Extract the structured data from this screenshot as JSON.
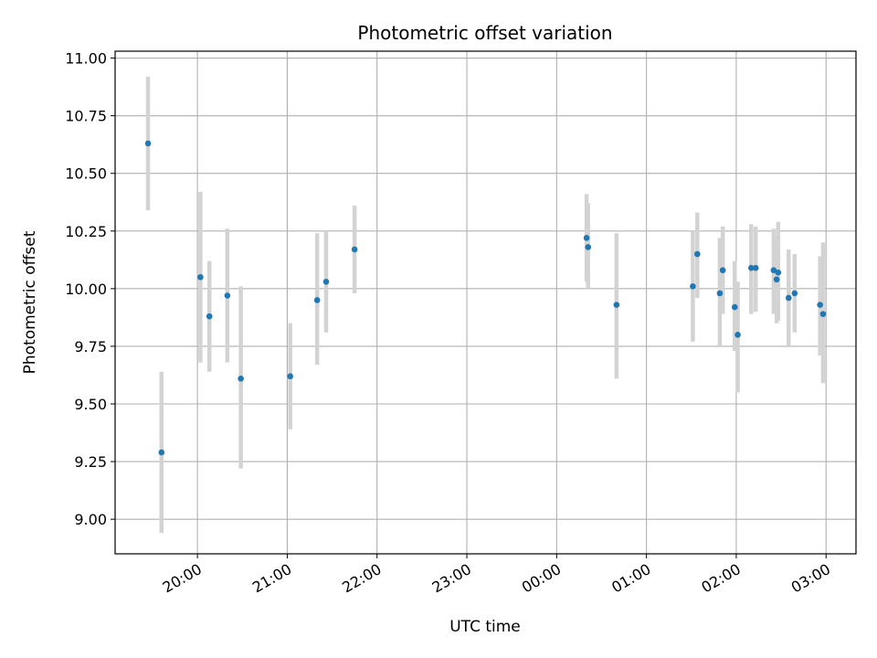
{
  "chart_data": {
    "type": "scatter",
    "title": "Photometric offset variation",
    "xlabel": "UTC time",
    "ylabel": "Photometric offset",
    "grid": true,
    "legend": "none",
    "x_axis": "time",
    "xlim": [
      "19:05",
      "03:20"
    ],
    "ylim": [
      8.85,
      11.03
    ],
    "x_ticks": [
      "20:00",
      "21:00",
      "22:00",
      "23:00",
      "00:00",
      "01:00",
      "02:00",
      "03:00"
    ],
    "y_ticks": [
      "9.00",
      "9.25",
      "9.50",
      "9.75",
      "10.00",
      "10.25",
      "10.50",
      "10.75",
      "11.00"
    ],
    "colors": {
      "point": "#1f77b4",
      "errorbar": "#d3d3d3",
      "grid": "#b0b0b0"
    },
    "points": [
      {
        "t": "19:27",
        "y": 10.63,
        "ylo": 10.34,
        "yhi": 10.92
      },
      {
        "t": "19:36",
        "y": 9.29,
        "ylo": 8.94,
        "yhi": 9.64
      },
      {
        "t": "20:02",
        "y": 10.05,
        "ylo": 9.68,
        "yhi": 10.42
      },
      {
        "t": "20:08",
        "y": 9.88,
        "ylo": 9.64,
        "yhi": 10.12
      },
      {
        "t": "20:20",
        "y": 9.97,
        "ylo": 9.68,
        "yhi": 10.26
      },
      {
        "t": "20:29",
        "y": 9.61,
        "ylo": 9.22,
        "yhi": 10.01
      },
      {
        "t": "21:02",
        "y": 9.62,
        "ylo": 9.39,
        "yhi": 9.85
      },
      {
        "t": "21:20",
        "y": 9.95,
        "ylo": 9.67,
        "yhi": 10.24
      },
      {
        "t": "21:26",
        "y": 10.03,
        "ylo": 9.81,
        "yhi": 10.25
      },
      {
        "t": "21:45",
        "y": 10.17,
        "ylo": 9.98,
        "yhi": 10.36
      },
      {
        "t": "00:20",
        "y": 10.22,
        "ylo": 10.03,
        "yhi": 10.41
      },
      {
        "t": "00:21",
        "y": 10.18,
        "ylo": 10.0,
        "yhi": 10.37
      },
      {
        "t": "00:40",
        "y": 9.93,
        "ylo": 9.61,
        "yhi": 10.24
      },
      {
        "t": "01:31",
        "y": 10.01,
        "ylo": 9.77,
        "yhi": 10.25
      },
      {
        "t": "01:34",
        "y": 10.15,
        "ylo": 9.96,
        "yhi": 10.33
      },
      {
        "t": "01:49",
        "y": 9.98,
        "ylo": 9.75,
        "yhi": 10.22
      },
      {
        "t": "01:51",
        "y": 10.08,
        "ylo": 9.89,
        "yhi": 10.27
      },
      {
        "t": "01:59",
        "y": 9.92,
        "ylo": 9.73,
        "yhi": 10.12
      },
      {
        "t": "02:01",
        "y": 9.8,
        "ylo": 9.55,
        "yhi": 10.03
      },
      {
        "t": "02:10",
        "y": 10.09,
        "ylo": 9.89,
        "yhi": 10.28
      },
      {
        "t": "02:13",
        "y": 10.09,
        "ylo": 9.9,
        "yhi": 10.27
      },
      {
        "t": "02:25",
        "y": 10.08,
        "ylo": 9.89,
        "yhi": 10.26
      },
      {
        "t": "02:27",
        "y": 10.04,
        "ylo": 9.85,
        "yhi": 10.23
      },
      {
        "t": "02:28",
        "y": 10.07,
        "ylo": 9.86,
        "yhi": 10.29
      },
      {
        "t": "02:35",
        "y": 9.96,
        "ylo": 9.75,
        "yhi": 10.17
      },
      {
        "t": "02:39",
        "y": 9.98,
        "ylo": 9.81,
        "yhi": 10.15
      },
      {
        "t": "02:56",
        "y": 9.93,
        "ylo": 9.71,
        "yhi": 10.14
      },
      {
        "t": "02:58",
        "y": 9.89,
        "ylo": 9.59,
        "yhi": 10.2
      }
    ]
  }
}
